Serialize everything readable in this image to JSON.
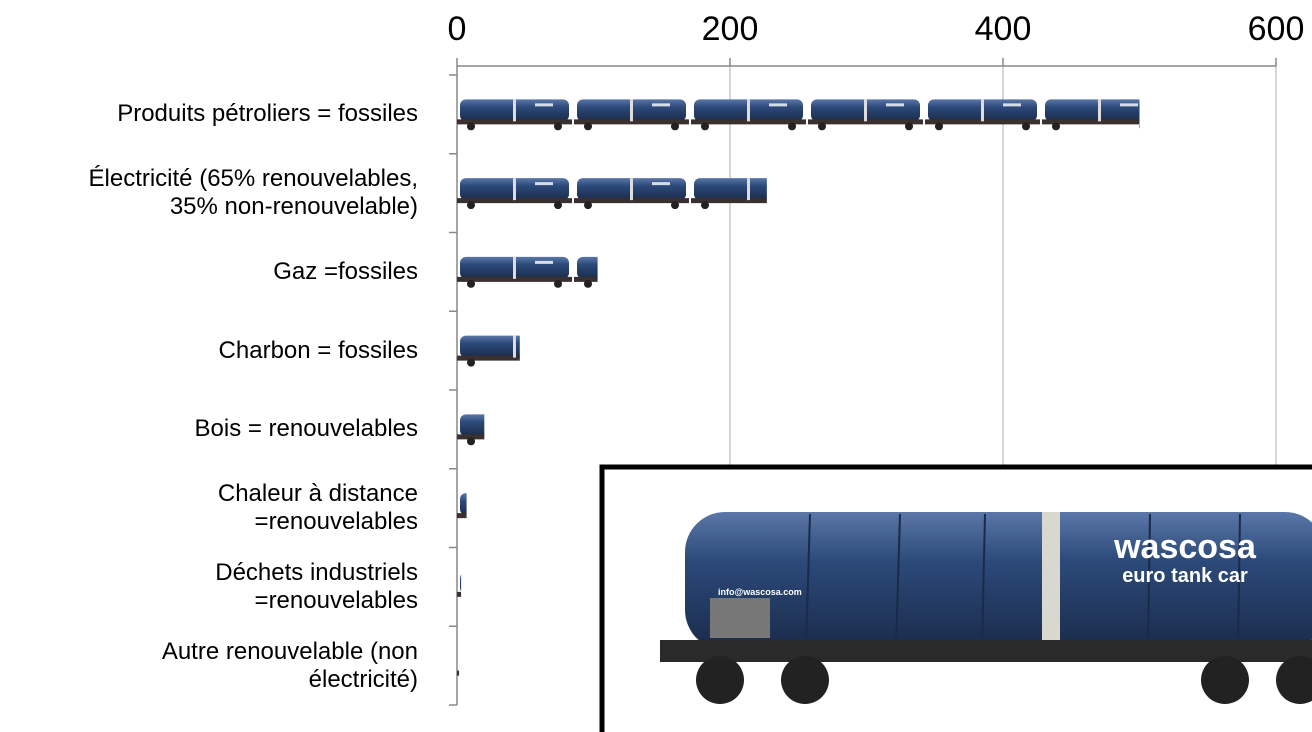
{
  "chart_data": {
    "type": "bar",
    "orientation": "horizontal",
    "categories": [
      "Produits pétroliers = fossiles",
      "Électricité (65% renouvelables,\n35% non-renouvelable)",
      "Gaz =fossiles",
      "Charbon = fossiles",
      "Bois = renouvelables",
      "Chaleur à distance\n=renouvelables",
      "Déchets industriels\n=renouvelables",
      "Autre renouvelable  (non\nélectricité)"
    ],
    "values": [
      500,
      227,
      103,
      46,
      20,
      7,
      3,
      1.5
    ],
    "color": "#2c4a7a",
    "xlim": [
      0,
      600
    ],
    "xticks": [
      0,
      200,
      400,
      600
    ],
    "grid": true,
    "image_texts": [
      "wascosa",
      "euro tank car",
      "info@wascosa.com"
    ]
  }
}
